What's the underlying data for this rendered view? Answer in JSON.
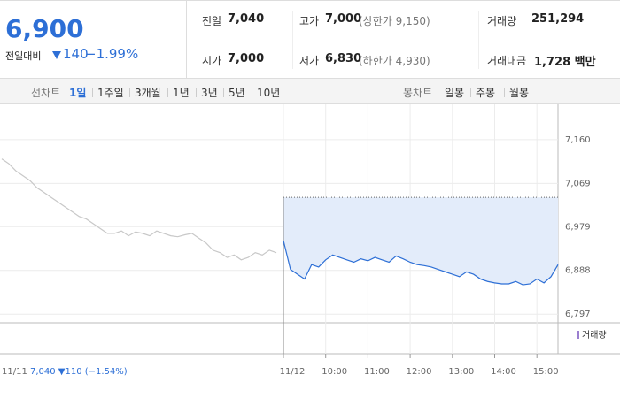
{
  "header": {
    "price": "6,900",
    "change_label": "전일대비",
    "change": "140",
    "change_rate": "−1.99%"
  },
  "stats": [
    {
      "label": "전일",
      "value": "7,040"
    },
    {
      "label": "고가",
      "value": "7,000",
      "note": "(상한가 9,150)"
    },
    {
      "label": "거래량",
      "value": "251,294"
    },
    {
      "label": "시가",
      "value": "7,000"
    },
    {
      "label": "저가",
      "value": "6,830",
      "note": "(하한가 4,930)"
    },
    {
      "label": "거래대금",
      "value": "1,728 백만"
    }
  ],
  "tabs": {
    "line": {
      "label": "선차트",
      "items": [
        "1일",
        "1주일",
        "3개월",
        "1년",
        "3년",
        "5년",
        "10년"
      ],
      "selected": 0
    },
    "candle": {
      "label": "봉차트",
      "items": [
        "일봉",
        "주봉",
        "월봉"
      ]
    }
  },
  "chart_data": {
    "type": "line",
    "categories": [
      "11/11",
      null,
      null,
      null,
      null,
      null,
      null,
      null,
      null,
      null,
      null,
      null,
      null,
      null,
      null,
      null,
      null,
      null,
      null,
      null,
      null,
      null,
      null,
      null,
      null,
      null,
      null,
      null,
      null,
      null,
      null,
      null,
      null,
      null,
      null,
      null,
      null,
      null,
      null,
      null,
      "11/12",
      null,
      null,
      null,
      null,
      null,
      "10:00",
      null,
      null,
      null,
      null,
      null,
      "11:00",
      null,
      null,
      null,
      null,
      null,
      "12:00",
      null,
      null,
      null,
      null,
      null,
      "13:00",
      null,
      null,
      null,
      null,
      null,
      "14:00",
      null,
      null,
      null,
      null,
      null,
      "15:00",
      null,
      null,
      null
    ],
    "prev_summary": "7,040 ▼110 (−1.54%)",
    "series": [
      {
        "name": "11/11",
        "color": "#c8c8c8",
        "values": [
          7120,
          7110,
          7095,
          7085,
          7075,
          7060,
          7050,
          7040,
          7030,
          7020,
          7010,
          7000,
          6995,
          6985,
          6975,
          6965,
          6965,
          6970,
          6960,
          6968,
          6965,
          6960,
          6970,
          6965,
          6960,
          6958,
          6962,
          6965,
          6955,
          6945,
          6930,
          6925,
          6915,
          6920,
          6910,
          6915,
          6925,
          6920,
          6930,
          6925,
          null,
          null,
          null,
          null,
          null,
          null,
          null,
          null,
          null,
          null,
          null,
          null,
          null,
          null,
          null,
          null,
          null,
          null,
          null,
          null,
          null,
          null,
          null,
          null,
          null,
          null,
          null,
          null,
          null,
          null,
          null,
          null,
          null,
          null,
          null,
          null,
          null,
          null,
          null,
          null
        ]
      },
      {
        "name": "11/12",
        "color": "#2d6fd6",
        "values": [
          null,
          null,
          null,
          null,
          null,
          null,
          null,
          null,
          null,
          null,
          null,
          null,
          null,
          null,
          null,
          null,
          null,
          null,
          null,
          null,
          null,
          null,
          null,
          null,
          null,
          null,
          null,
          null,
          null,
          null,
          null,
          null,
          null,
          null,
          null,
          null,
          null,
          null,
          null,
          null,
          6950,
          6890,
          6880,
          6870,
          6900,
          6895,
          6910,
          6920,
          6915,
          6910,
          6905,
          6912,
          6908,
          6915,
          6910,
          6905,
          6918,
          6912,
          6905,
          6900,
          6898,
          6895,
          6890,
          6885,
          6880,
          6875,
          6885,
          6880,
          6870,
          6865,
          6862,
          6860,
          6860,
          6865,
          6858,
          6860,
          6870,
          6862,
          6875,
          6900
        ]
      }
    ],
    "reference_line": 7040,
    "ylim": [
      6779,
      7226
    ],
    "yticks": [
      {
        "value": 7160,
        "label": "7,160"
      },
      {
        "value": 7069,
        "label": "7,069"
      },
      {
        "value": 6979,
        "label": "6,979"
      },
      {
        "value": 6888,
        "label": "6,888"
      },
      {
        "value": 6797,
        "label": "6,797"
      }
    ],
    "grid": true,
    "volume_label": "거래량"
  }
}
